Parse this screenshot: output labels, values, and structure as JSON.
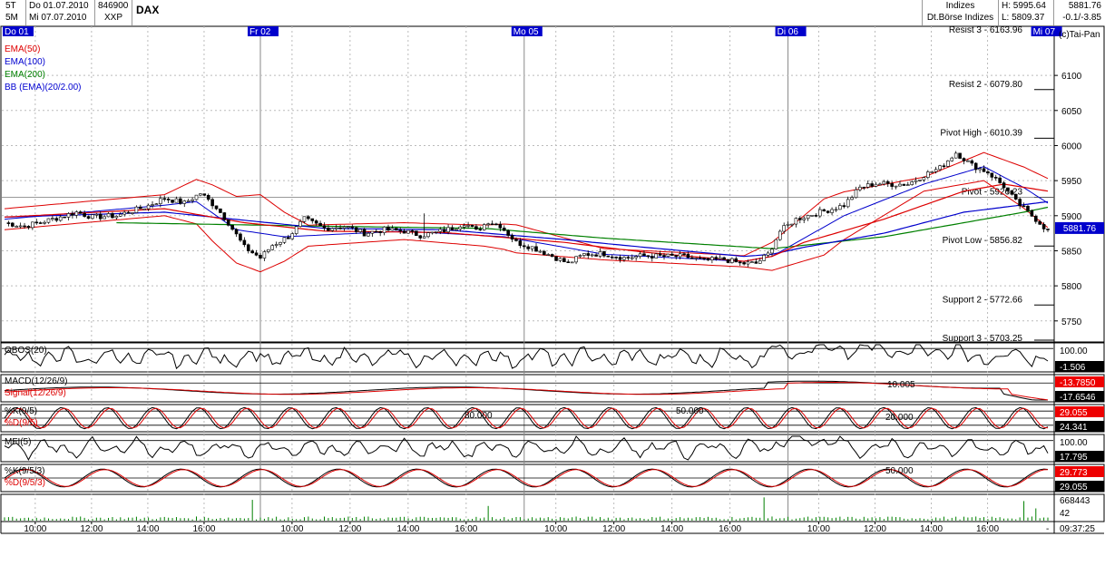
{
  "header": {
    "tf1": "5T",
    "tf2": "5M",
    "date_from": "Do 01.07.2010",
    "date_to": "Mi 07.07.2010",
    "wkn": "846900",
    "exchange": "XXP",
    "title": "DAX",
    "category": "Indizes",
    "market": "Dt.Börse Indizes",
    "high": "H: 5995.64",
    "low": "L: 5809.37",
    "last": "5881.76",
    "change": "-0.1/-3.85"
  },
  "watermark": "(c)Tai-Pan",
  "day_labels": [
    "Do 01",
    "Fr 02",
    "Mo 05",
    "Di 06",
    "Mi 07"
  ],
  "indicator_legend": [
    {
      "label": "EMA(50)",
      "color": "#e00000"
    },
    {
      "label": "EMA(100)",
      "color": "#0000d0"
    },
    {
      "label": "EMA(200)",
      "color": "#008000"
    },
    {
      "label": "BB (EMA)(20/2.00)",
      "color": "#0000d0"
    }
  ],
  "chart_data": {
    "type": "line",
    "subtype": "candlestick-with-indicators",
    "grid": true,
    "y_ticks": [
      6100,
      6050,
      6000,
      5950,
      5900,
      5850,
      5800,
      5750
    ],
    "y_range": [
      5720,
      6170
    ],
    "x_ticks": [
      "10:00",
      "12:00",
      "14:00",
      "16:00",
      "10:00",
      "12:00",
      "14:00",
      "16:00",
      "10:00",
      "12:00",
      "14:00",
      "16:00",
      "10:00",
      "12:00",
      "14:00",
      "16:00"
    ],
    "levels": [
      {
        "label": "Resist 3 - 6163.96",
        "value": 6163.96
      },
      {
        "label": "Resist 2 - 6079.80",
        "value": 6079.8
      },
      {
        "label": "Pivot High - 6010.39",
        "value": 6010.39
      },
      {
        "label": "Pivot - 5926.23",
        "value": 5926.23
      },
      {
        "label": "Pivot Low - 5856.82",
        "value": 5856.82
      },
      {
        "label": "Support 2 - 5772.66",
        "value": 5772.66
      },
      {
        "label": "Support 3 - 5703.25",
        "value": 5703.25
      }
    ],
    "last_price": {
      "label": "5881.76",
      "value": 5881.76
    },
    "price_anchors": [
      [
        0,
        5890
      ],
      [
        5,
        5885
      ],
      [
        12,
        5895
      ],
      [
        18,
        5905
      ],
      [
        22,
        5898
      ],
      [
        28,
        5900
      ],
      [
        35,
        5912
      ],
      [
        40,
        5925
      ],
      [
        45,
        5918
      ],
      [
        49,
        5932
      ],
      [
        53,
        5912
      ],
      [
        56,
        5890
      ],
      [
        60,
        5855
      ],
      [
        64,
        5840
      ],
      [
        67,
        5858
      ],
      [
        71,
        5870
      ],
      [
        75,
        5895
      ],
      [
        80,
        5882
      ],
      [
        85,
        5885
      ],
      [
        90,
        5875
      ],
      [
        95,
        5880
      ],
      [
        100,
        5878
      ],
      [
        104,
        5872
      ],
      [
        108,
        5876
      ],
      [
        112,
        5882
      ],
      [
        115,
        5890
      ],
      [
        118,
        5878
      ],
      [
        121,
        5892
      ],
      [
        124,
        5886
      ],
      [
        128,
        5862
      ],
      [
        132,
        5855
      ],
      [
        136,
        5845
      ],
      [
        141,
        5832
      ],
      [
        145,
        5845
      ],
      [
        150,
        5846
      ],
      [
        155,
        5840
      ],
      [
        160,
        5843
      ],
      [
        165,
        5842
      ],
      [
        170,
        5842
      ],
      [
        175,
        5836
      ],
      [
        180,
        5838
      ],
      [
        184,
        5832
      ],
      [
        188,
        5832
      ],
      [
        191,
        5845
      ],
      [
        194,
        5878
      ],
      [
        198,
        5895
      ],
      [
        202,
        5902
      ],
      [
        206,
        5908
      ],
      [
        210,
        5915
      ],
      [
        214,
        5940
      ],
      [
        218,
        5946
      ],
      [
        222,
        5945
      ],
      [
        226,
        5945
      ],
      [
        230,
        5958
      ],
      [
        234,
        5968
      ],
      [
        238,
        5990
      ],
      [
        242,
        5972
      ],
      [
        246,
        5962
      ],
      [
        250,
        5942
      ],
      [
        253,
        5920
      ],
      [
        256,
        5905
      ],
      [
        259,
        5890
      ],
      [
        261,
        5878
      ]
    ],
    "ema50_anchors": [
      [
        0,
        5898
      ],
      [
        40,
        5910
      ],
      [
        60,
        5890
      ],
      [
        80,
        5878
      ],
      [
        110,
        5876
      ],
      [
        140,
        5862
      ],
      [
        160,
        5848
      ],
      [
        185,
        5835
      ],
      [
        192,
        5842
      ],
      [
        200,
        5862
      ],
      [
        220,
        5895
      ],
      [
        240,
        5935
      ],
      [
        250,
        5945
      ],
      [
        261,
        5935
      ]
    ],
    "ema100_anchors": [
      [
        0,
        5898
      ],
      [
        40,
        5905
      ],
      [
        80,
        5882
      ],
      [
        110,
        5880
      ],
      [
        140,
        5866
      ],
      [
        160,
        5855
      ],
      [
        185,
        5842
      ],
      [
        192,
        5845
      ],
      [
        200,
        5855
      ],
      [
        220,
        5875
      ],
      [
        240,
        5905
      ],
      [
        261,
        5920
      ]
    ],
    "ema200_anchors": [
      [
        28,
        5890
      ],
      [
        80,
        5885
      ],
      [
        120,
        5882
      ],
      [
        150,
        5868
      ],
      [
        192,
        5853
      ],
      [
        220,
        5870
      ],
      [
        240,
        5890
      ],
      [
        255,
        5905
      ],
      [
        261,
        5912
      ]
    ],
    "bb_mid_anchors": [
      [
        0,
        5895
      ],
      [
        40,
        5915
      ],
      [
        48,
        5920
      ],
      [
        58,
        5880
      ],
      [
        70,
        5870
      ],
      [
        100,
        5878
      ],
      [
        125,
        5870
      ],
      [
        150,
        5845
      ],
      [
        185,
        5835
      ],
      [
        192,
        5842
      ],
      [
        210,
        5900
      ],
      [
        230,
        5945
      ],
      [
        245,
        5970
      ],
      [
        255,
        5940
      ],
      [
        261,
        5918
      ]
    ],
    "bb_width_anchors": [
      [
        0,
        15
      ],
      [
        40,
        15
      ],
      [
        52,
        40
      ],
      [
        64,
        55
      ],
      [
        76,
        15
      ],
      [
        100,
        12
      ],
      [
        120,
        15
      ],
      [
        128,
        20
      ],
      [
        150,
        8
      ],
      [
        185,
        8
      ],
      [
        192,
        20
      ],
      [
        205,
        40
      ],
      [
        230,
        10
      ],
      [
        245,
        20
      ],
      [
        261,
        35
      ]
    ],
    "volume_spikes": [
      [
        62,
        0.85
      ],
      [
        121,
        0.6
      ],
      [
        190,
        0.95
      ],
      [
        255,
        0.8
      ],
      [
        258,
        0.5
      ]
    ],
    "subpanels": [
      {
        "name": "OBOS",
        "label": "OBOS(20)",
        "level_label": "100.00",
        "value_label": "-1.506",
        "value_bg": "#000000",
        "value_fg": "#ffffff"
      },
      {
        "name": "MACD",
        "label": "MACD(12/26/9)",
        "label2": "Signal(12/26/9)",
        "level_label": "10.005",
        "value_label": "-13.7850",
        "value2_label": "-17.6546",
        "value_bg": "#ee0000",
        "value2_bg": "#000000"
      },
      {
        "name": "STOCH1",
        "label": "%K(9/5)",
        "label2": "%D(9/5)",
        "level_labels": [
          "80.000",
          "50.000",
          "20.000"
        ],
        "value_label": "29.055",
        "value2_label": "24.341",
        "value_bg": "#ee0000",
        "value2_bg": "#000000"
      },
      {
        "name": "MFI",
        "label": "MFI(5)",
        "level_label": "100.00",
        "value_label": "17.795",
        "value_bg": "#000000"
      },
      {
        "name": "STOCH2",
        "label": "%K(9/5/3)",
        "label2": "%D(9/5/3)",
        "level_label": "50.000",
        "value_label": "29.773",
        "value2_label": "29.055",
        "value_bg": "#ee0000",
        "value2_bg": "#000000"
      },
      {
        "name": "VOL",
        "value_label": "668443",
        "value2_label": "42"
      }
    ],
    "time_label": "09:37:25",
    "dash_label": "-"
  }
}
